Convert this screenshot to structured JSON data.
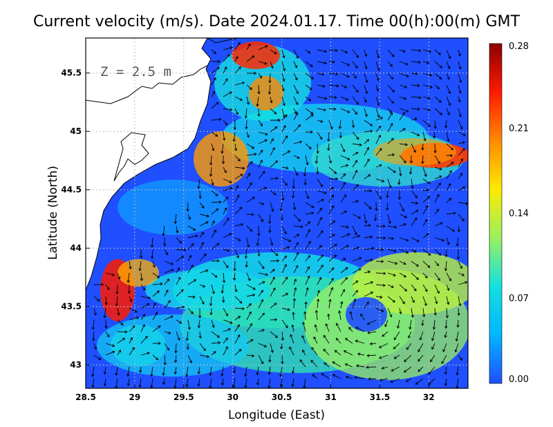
{
  "title": "Current velocity (m/s). Date 2024.01.17. Time 00(h):00(m) GMT",
  "depth_label": "Z = 2.5 m",
  "xlabel": "Longitude (East)",
  "ylabel": "Latitude (North)",
  "x_ticks": [
    "28.5",
    "29",
    "29.5",
    "30",
    "30.5",
    "31",
    "31.5",
    "32"
  ],
  "y_ticks": [
    "43",
    "43.5",
    "44",
    "44.5",
    "45",
    "45.5"
  ],
  "colorbar": {
    "ticks": [
      "0.00",
      "0.07",
      "0.14",
      "0.21",
      "0.28"
    ],
    "colors": [
      "#1f4fff",
      "#00b7ff",
      "#14e0e0",
      "#9af060",
      "#ffea00",
      "#ff8a00",
      "#ff1a00",
      "#8b0000"
    ]
  },
  "chart_data": {
    "type": "heatmap",
    "title": "Current velocity (m/s). Date 2024.01.17. Time 00(h):00(m) GMT",
    "xlabel": "Longitude (East)",
    "ylabel": "Latitude (North)",
    "xlim": [
      28.5,
      32.4
    ],
    "ylim": [
      42.8,
      45.8
    ],
    "value_range": [
      0.0,
      0.28
    ],
    "grid": true,
    "annotation": "Z = 2.5 m"
  }
}
